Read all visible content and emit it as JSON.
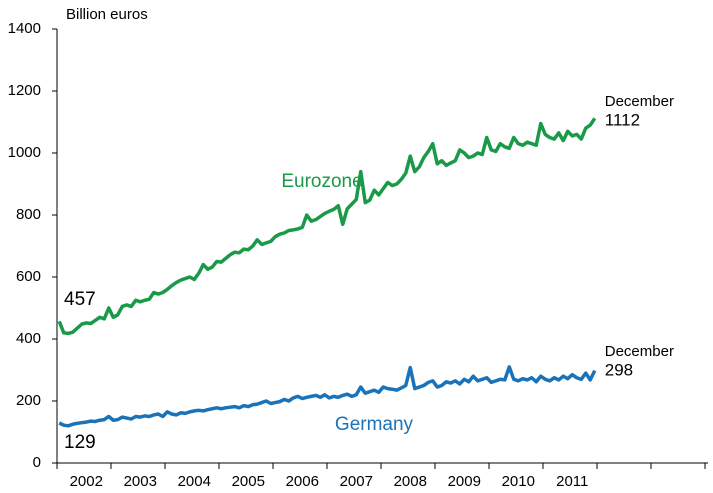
{
  "chart_data": {
    "type": "line",
    "y_label": "Billion euros",
    "categories": [
      null,
      null,
      null,
      null,
      null,
      null,
      "2002",
      null,
      null,
      null,
      null,
      null,
      null,
      null,
      null,
      null,
      null,
      null,
      "2003",
      null,
      null,
      null,
      null,
      null,
      null,
      null,
      null,
      null,
      null,
      null,
      "2004",
      null,
      null,
      null,
      null,
      null,
      null,
      null,
      null,
      null,
      null,
      null,
      "2005",
      null,
      null,
      null,
      null,
      null,
      null,
      null,
      null,
      null,
      null,
      null,
      "2006",
      null,
      null,
      null,
      null,
      null,
      null,
      null,
      null,
      null,
      null,
      null,
      "2007",
      null,
      null,
      null,
      null,
      null,
      null,
      null,
      null,
      null,
      null,
      null,
      "2008",
      null,
      null,
      null,
      null,
      null,
      null,
      null,
      null,
      null,
      null,
      null,
      "2009",
      null,
      null,
      null,
      null,
      null,
      null,
      null,
      null,
      null,
      null,
      null,
      "2010",
      null,
      null,
      null,
      null,
      null,
      null,
      null,
      null,
      null,
      null,
      null,
      "2011",
      null,
      null,
      null,
      null,
      null
    ],
    "series": [
      {
        "name": "Eurozone",
        "color": "#1a9a48",
        "values": [
          457,
          420,
          418,
          422,
          435,
          448,
          452,
          450,
          460,
          470,
          465,
          500,
          470,
          478,
          505,
          510,
          505,
          525,
          520,
          525,
          528,
          550,
          545,
          550,
          560,
          572,
          582,
          590,
          595,
          600,
          592,
          612,
          640,
          625,
          632,
          650,
          648,
          660,
          672,
          680,
          678,
          690,
          688,
          700,
          720,
          705,
          710,
          715,
          730,
          738,
          742,
          750,
          752,
          755,
          760,
          800,
          780,
          785,
          795,
          805,
          812,
          818,
          830,
          770,
          820,
          835,
          850,
          940,
          840,
          848,
          880,
          865,
          885,
          905,
          895,
          900,
          915,
          935,
          990,
          940,
          955,
          985,
          1005,
          1030,
          965,
          975,
          960,
          968,
          975,
          1010,
          1000,
          985,
          990,
          1000,
          995,
          1050,
          1010,
          1005,
          1030,
          1020,
          1015,
          1050,
          1030,
          1025,
          1035,
          1030,
          1025,
          1095,
          1060,
          1050,
          1045,
          1065,
          1040,
          1070,
          1055,
          1060,
          1045,
          1080,
          1090,
          1112
        ]
      },
      {
        "name": "Germany",
        "color": "#1a73b8",
        "values": [
          129,
          122,
          120,
          125,
          128,
          130,
          132,
          135,
          134,
          138,
          140,
          150,
          138,
          140,
          148,
          145,
          142,
          150,
          148,
          152,
          150,
          155,
          158,
          150,
          165,
          158,
          155,
          162,
          160,
          165,
          168,
          170,
          168,
          172,
          175,
          178,
          175,
          178,
          180,
          182,
          178,
          185,
          182,
          188,
          190,
          195,
          200,
          192,
          195,
          198,
          205,
          200,
          210,
          215,
          208,
          212,
          215,
          218,
          212,
          220,
          210,
          215,
          212,
          218,
          222,
          215,
          220,
          245,
          225,
          230,
          235,
          228,
          245,
          240,
          238,
          235,
          242,
          250,
          308,
          240,
          245,
          250,
          260,
          265,
          245,
          250,
          262,
          258,
          265,
          255,
          270,
          262,
          280,
          265,
          270,
          275,
          260,
          265,
          270,
          268,
          310,
          270,
          265,
          272,
          268,
          275,
          262,
          280,
          270,
          265,
          275,
          268,
          280,
          272,
          285,
          275,
          270,
          290,
          268,
          298
        ]
      }
    ],
    "annotations": [
      "457",
      "129",
      "December",
      "1112",
      "December",
      "298"
    ],
    "ylim": [
      0,
      1400
    ],
    "yticks": [
      0,
      200,
      400,
      600,
      800,
      1000,
      1200,
      1400
    ],
    "grid": false
  }
}
